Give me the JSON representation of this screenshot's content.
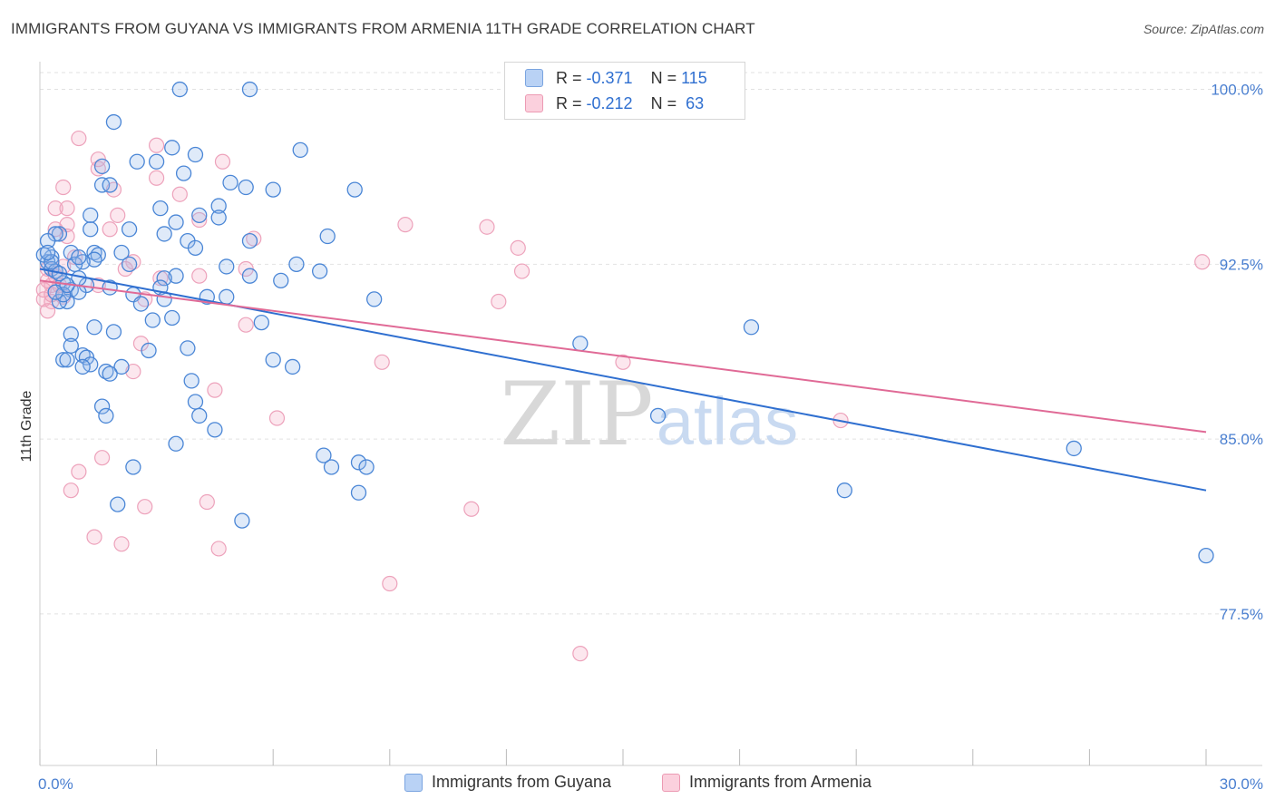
{
  "title": "IMMIGRANTS FROM GUYANA VS IMMIGRANTS FROM ARMENIA 11TH GRADE CORRELATION CHART",
  "source": "Source: ZipAtlas.com",
  "watermark": {
    "zip": "ZIP",
    "atlas": "atlas"
  },
  "legend": {
    "r_label": "R =",
    "n_label": "N =",
    "items": [
      {
        "r": "-0.371",
        "n": "115"
      },
      {
        "r": "-0.212",
        "n": "63"
      }
    ]
  },
  "chart_data": {
    "type": "scatter",
    "xlabel": "",
    "ylabel": "11th Grade",
    "xlim": [
      0,
      30
    ],
    "ylim": [
      71,
      101.5
    ],
    "x_tick_labels": [
      "0.0%",
      "30.0%"
    ],
    "y_ticks": [
      77.5,
      85.0,
      92.5,
      100.0
    ],
    "y_tick_labels": [
      "77.5%",
      "85.0%",
      "92.5%",
      "100.0%"
    ],
    "grid": true,
    "legend_position": "bottom",
    "colors": {
      "guyana": "#4a86d6",
      "armenia": "#e87aa0",
      "guyana_line": "#2f6fd0",
      "armenia_line": "#e06a96",
      "tick_label": "#4a7fd0"
    },
    "series": [
      {
        "name": "Immigrants from Guyana",
        "trend": [
          [
            0,
            92.3
          ],
          [
            30,
            82.8
          ]
        ],
        "points": [
          [
            3.6,
            100.0
          ],
          [
            5.4,
            100.0
          ],
          [
            1.9,
            98.6
          ],
          [
            3.4,
            97.5
          ],
          [
            6.7,
            97.4
          ],
          [
            4.0,
            97.2
          ],
          [
            2.5,
            96.9
          ],
          [
            3.0,
            96.9
          ],
          [
            1.6,
            96.7
          ],
          [
            3.7,
            96.4
          ],
          [
            4.9,
            96.0
          ],
          [
            1.6,
            95.9
          ],
          [
            1.8,
            95.9
          ],
          [
            5.3,
            95.8
          ],
          [
            6.0,
            95.7
          ],
          [
            8.1,
            95.7
          ],
          [
            4.6,
            95.0
          ],
          [
            3.1,
            94.9
          ],
          [
            4.1,
            94.6
          ],
          [
            4.6,
            94.5
          ],
          [
            1.3,
            94.6
          ],
          [
            3.5,
            94.3
          ],
          [
            2.3,
            94.0
          ],
          [
            1.3,
            94.0
          ],
          [
            3.2,
            93.8
          ],
          [
            0.5,
            93.8
          ],
          [
            0.4,
            93.8
          ],
          [
            7.4,
            93.7
          ],
          [
            3.8,
            93.5
          ],
          [
            5.4,
            93.5
          ],
          [
            4.0,
            93.2
          ],
          [
            0.8,
            93.0
          ],
          [
            1.4,
            93.0
          ],
          [
            2.1,
            93.0
          ],
          [
            1.5,
            92.9
          ],
          [
            0.3,
            92.8
          ],
          [
            1.4,
            92.7
          ],
          [
            0.2,
            92.6
          ],
          [
            1.1,
            92.6
          ],
          [
            2.3,
            92.5
          ],
          [
            6.6,
            92.5
          ],
          [
            4.8,
            92.4
          ],
          [
            0.3,
            92.3
          ],
          [
            7.2,
            92.2
          ],
          [
            5.4,
            92.0
          ],
          [
            3.5,
            92.0
          ],
          [
            3.2,
            91.9
          ],
          [
            6.2,
            91.8
          ],
          [
            0.6,
            91.7
          ],
          [
            1.2,
            91.6
          ],
          [
            1.8,
            91.5
          ],
          [
            3.1,
            91.5
          ],
          [
            0.8,
            91.4
          ],
          [
            1.0,
            91.3
          ],
          [
            2.4,
            91.2
          ],
          [
            4.3,
            91.1
          ],
          [
            4.8,
            91.1
          ],
          [
            3.2,
            91.0
          ],
          [
            2.6,
            90.8
          ],
          [
            0.7,
            90.9
          ],
          [
            0.5,
            90.9
          ],
          [
            8.6,
            91.0
          ],
          [
            3.4,
            90.2
          ],
          [
            2.9,
            90.1
          ],
          [
            5.7,
            90.0
          ],
          [
            1.4,
            89.8
          ],
          [
            1.9,
            89.6
          ],
          [
            18.3,
            89.8
          ],
          [
            0.8,
            89.5
          ],
          [
            0.8,
            89.0
          ],
          [
            3.8,
            88.9
          ],
          [
            2.8,
            88.8
          ],
          [
            1.1,
            88.6
          ],
          [
            13.9,
            89.1
          ],
          [
            1.2,
            88.5
          ],
          [
            0.6,
            88.4
          ],
          [
            0.7,
            88.4
          ],
          [
            1.3,
            88.2
          ],
          [
            1.1,
            88.1
          ],
          [
            2.1,
            88.1
          ],
          [
            6.0,
            88.4
          ],
          [
            6.5,
            88.1
          ],
          [
            1.7,
            87.9
          ],
          [
            1.8,
            87.8
          ],
          [
            3.9,
            87.5
          ],
          [
            1.6,
            86.4
          ],
          [
            4.0,
            86.6
          ],
          [
            1.7,
            86.0
          ],
          [
            4.1,
            86.0
          ],
          [
            4.5,
            85.4
          ],
          [
            15.9,
            86.0
          ],
          [
            3.5,
            84.8
          ],
          [
            7.3,
            84.3
          ],
          [
            7.5,
            83.8
          ],
          [
            8.2,
            84.0
          ],
          [
            8.4,
            83.8
          ],
          [
            2.4,
            83.8
          ],
          [
            26.6,
            84.6
          ],
          [
            2.0,
            82.2
          ],
          [
            8.2,
            82.7
          ],
          [
            20.7,
            82.8
          ],
          [
            5.2,
            81.5
          ],
          [
            30.0,
            80.0
          ],
          [
            0.1,
            92.9
          ],
          [
            0.2,
            93.5
          ],
          [
            0.4,
            92.2
          ],
          [
            0.6,
            91.2
          ],
          [
            0.9,
            92.5
          ],
          [
            1.0,
            91.9
          ],
          [
            0.3,
            92.6
          ],
          [
            0.5,
            92.1
          ],
          [
            1.0,
            92.8
          ],
          [
            0.2,
            93.0
          ],
          [
            0.7,
            91.6
          ],
          [
            0.4,
            91.3
          ]
        ]
      },
      {
        "name": "Immigrants from Armenia",
        "trend": [
          [
            0,
            91.8
          ],
          [
            30,
            85.3
          ]
        ],
        "points": [
          [
            1.0,
            97.9
          ],
          [
            3.0,
            97.6
          ],
          [
            1.5,
            97.0
          ],
          [
            4.7,
            96.9
          ],
          [
            1.5,
            96.6
          ],
          [
            3.0,
            96.2
          ],
          [
            0.6,
            95.8
          ],
          [
            1.9,
            95.7
          ],
          [
            3.6,
            95.5
          ],
          [
            0.7,
            94.9
          ],
          [
            0.4,
            94.9
          ],
          [
            2.0,
            94.6
          ],
          [
            4.1,
            94.4
          ],
          [
            0.7,
            94.2
          ],
          [
            9.4,
            94.2
          ],
          [
            11.5,
            94.1
          ],
          [
            1.8,
            94.0
          ],
          [
            0.4,
            94.0
          ],
          [
            0.7,
            93.7
          ],
          [
            5.5,
            93.6
          ],
          [
            12.3,
            93.2
          ],
          [
            0.9,
            92.8
          ],
          [
            2.4,
            92.6
          ],
          [
            0.2,
            92.3
          ],
          [
            2.2,
            92.3
          ],
          [
            5.3,
            92.3
          ],
          [
            4.1,
            92.0
          ],
          [
            12.4,
            92.2
          ],
          [
            29.9,
            92.6
          ],
          [
            3.1,
            91.9
          ],
          [
            0.3,
            91.6
          ],
          [
            1.5,
            91.6
          ],
          [
            0.6,
            91.1
          ],
          [
            0.1,
            91.0
          ],
          [
            0.3,
            90.9
          ],
          [
            2.7,
            91.0
          ],
          [
            11.8,
            90.9
          ],
          [
            0.2,
            90.5
          ],
          [
            5.3,
            89.9
          ],
          [
            2.6,
            89.1
          ],
          [
            15.0,
            88.3
          ],
          [
            8.8,
            88.3
          ],
          [
            2.4,
            87.9
          ],
          [
            4.5,
            87.1
          ],
          [
            6.1,
            85.9
          ],
          [
            20.6,
            85.8
          ],
          [
            1.6,
            84.2
          ],
          [
            1.0,
            83.6
          ],
          [
            0.8,
            82.8
          ],
          [
            2.7,
            82.1
          ],
          [
            4.3,
            82.3
          ],
          [
            11.1,
            82.0
          ],
          [
            1.4,
            80.8
          ],
          [
            2.1,
            80.5
          ],
          [
            4.6,
            80.3
          ],
          [
            9.0,
            78.8
          ],
          [
            13.9,
            75.8
          ],
          [
            0.1,
            91.4
          ],
          [
            0.2,
            91.8
          ],
          [
            0.4,
            92.0
          ],
          [
            0.3,
            91.2
          ],
          [
            0.5,
            91.6
          ],
          [
            0.6,
            92.4
          ]
        ]
      }
    ]
  }
}
